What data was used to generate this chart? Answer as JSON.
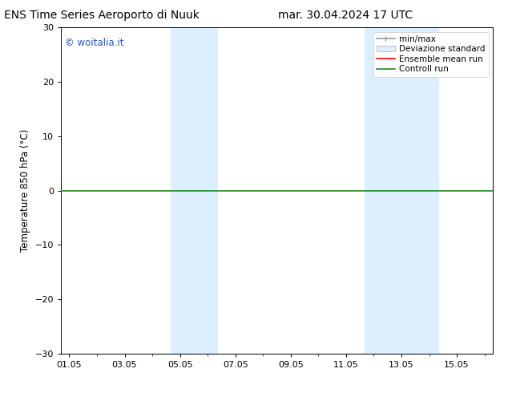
{
  "title_left": "ENS Time Series Aeroporto di Nuuk",
  "title_right": "mar. 30.04.2024 17 UTC",
  "ylabel": "Temperature 850 hPa (°C)",
  "ylim": [
    -30,
    30
  ],
  "yticks": [
    -30,
    -20,
    -10,
    0,
    10,
    20,
    30
  ],
  "xtick_labels": [
    "01.05",
    "03.05",
    "05.05",
    "07.05",
    "09.05",
    "11.05",
    "13.05",
    "15.05"
  ],
  "xtick_positions": [
    0,
    2,
    4,
    6,
    8,
    10,
    12,
    14
  ],
  "xlim": [
    -0.3,
    15.3
  ],
  "background_color": "#ffffff",
  "plot_bg_color": "#ffffff",
  "shaded_bands": [
    {
      "x_start": 3.67,
      "x_end": 5.33,
      "color": "#ddeeff"
    },
    {
      "x_start": 10.67,
      "x_end": 13.33,
      "color": "#ddeeff"
    }
  ],
  "hline_y": 0,
  "hline_color": "#228822",
  "hline_lw": 1.2,
  "watermark_text": "© woitalia.it",
  "watermark_color": "#2255cc",
  "legend_items": [
    {
      "label": "min/max",
      "color": "#999999",
      "lw": 1.2
    },
    {
      "label": "Deviazione standard",
      "color": "#ddeeff",
      "lw": 8
    },
    {
      "label": "Ensemble mean run",
      "color": "#ff0000",
      "lw": 1.2
    },
    {
      "label": "Controll run",
      "color": "#228822",
      "lw": 1.2
    }
  ],
  "title_fontsize": 10,
  "axis_fontsize": 8.5,
  "tick_fontsize": 8,
  "legend_fontsize": 7.5
}
